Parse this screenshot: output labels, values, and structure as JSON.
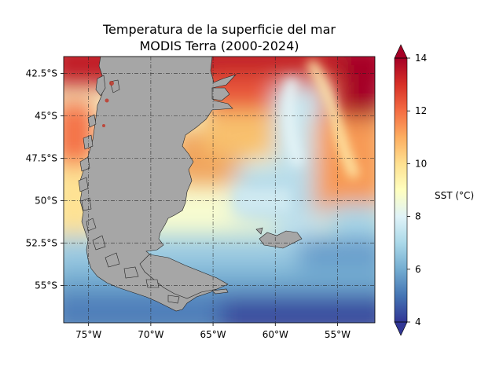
{
  "title": {
    "line1": "Temperatura de la superficie del mar",
    "line2": "MODIS Terra (2000-2024)"
  },
  "map": {
    "lon_range": [
      -77,
      -52
    ],
    "lat_range": [
      -57.2,
      -41.5
    ],
    "lon_ticks": [
      {
        "value": -75,
        "label": "75°W"
      },
      {
        "value": -70,
        "label": "70°W"
      },
      {
        "value": -65,
        "label": "65°W"
      },
      {
        "value": -60,
        "label": "60°W"
      },
      {
        "value": -55,
        "label": "55°W"
      }
    ],
    "lat_ticks": [
      {
        "value": -42.5,
        "label": "42.5°S"
      },
      {
        "value": -45,
        "label": "45°S"
      },
      {
        "value": -47.5,
        "label": "47.5°S"
      },
      {
        "value": -50,
        "label": "50°S"
      },
      {
        "value": -52.5,
        "label": "52.5°S"
      },
      {
        "value": -55,
        "label": "55°S"
      }
    ],
    "grid": true,
    "land_color": "#a6a6a6"
  },
  "colorbar": {
    "label": "SST (°C)",
    "range": [
      4,
      14
    ],
    "ticks": [
      {
        "value": 4,
        "label": "4"
      },
      {
        "value": 6,
        "label": "6"
      },
      {
        "value": 8,
        "label": "8"
      },
      {
        "value": 10,
        "label": "10"
      },
      {
        "value": 12,
        "label": "12"
      },
      {
        "value": 14,
        "label": "14"
      }
    ],
    "colormap": "RdYlBu_r",
    "colors": [
      "#313695",
      "#4575b4",
      "#74add1",
      "#abd9e9",
      "#e0f3f8",
      "#ffffbf",
      "#fee090",
      "#fdae61",
      "#f46d43",
      "#d73027",
      "#a50026"
    ]
  }
}
